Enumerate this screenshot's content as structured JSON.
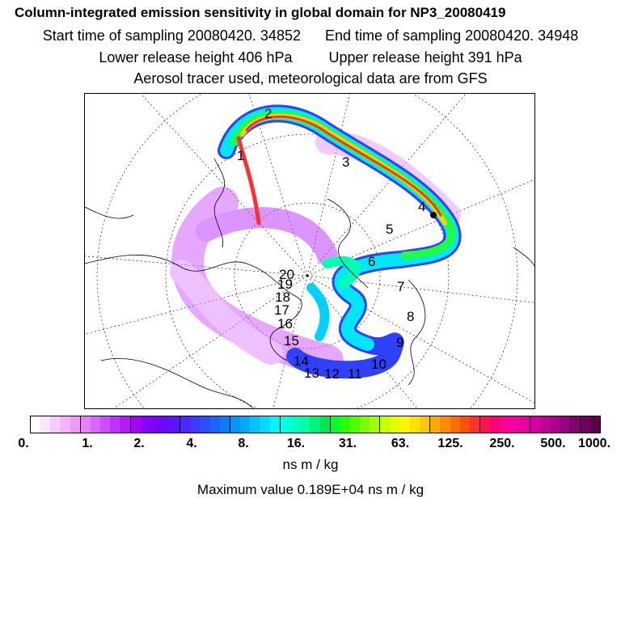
{
  "header": {
    "title": "Column-integrated emission sensitivity in global domain for NP3_20080419",
    "start_time": "Start time of sampling 20080420. 34852",
    "end_time": "End time of sampling 20080420. 34948",
    "lower_height": "Lower release height  406 hPa",
    "upper_height": "Upper release height  391 hPa",
    "tracer_note": "Aerosol tracer used, meteorological data are from GFS"
  },
  "map": {
    "trajectory_points": [
      "1",
      "2",
      "3",
      "4",
      "5",
      "6",
      "7",
      "8",
      "9",
      "10",
      "11",
      "12",
      "13",
      "14",
      "15",
      "16",
      "17",
      "18",
      "19",
      "20"
    ]
  },
  "colorbar": {
    "tick_labels": [
      "0.",
      "1.",
      "2.",
      "4.",
      "8.",
      "16.",
      "31.",
      "63.",
      "125.",
      "250.",
      "500.",
      "1000."
    ],
    "units": "ns m / kg",
    "colors": [
      "#ffffff",
      "#fbe6ff",
      "#f6ccff",
      "#f2b3ff",
      "#ed99ff",
      "#e880ff",
      "#d966ff",
      "#cc4dff",
      "#bf33ff",
      "#b31aff",
      "#a600ff",
      "#8c00ff",
      "#7a00ff",
      "#6a0aff",
      "#5a14ff",
      "#4a28ff",
      "#3a3cff",
      "#2a50ff",
      "#1a64ff",
      "#0a7dff",
      "#0096ff",
      "#00aaff",
      "#00c3ff",
      "#00dcff",
      "#00f5ff",
      "#00ffe6",
      "#00ffc3",
      "#00ffa0",
      "#00f578",
      "#00e650",
      "#00ff28",
      "#28ff00",
      "#50ff00",
      "#78ff00",
      "#a0ff00",
      "#c8ff00",
      "#e6ff00",
      "#fff500",
      "#ffe100",
      "#ffc800",
      "#ffaa00",
      "#ff8c00",
      "#ff6e00",
      "#ff5000",
      "#ff3232",
      "#ff1450",
      "#ff0078",
      "#ff0096",
      "#f500a0",
      "#e600a0",
      "#d200a0",
      "#be0096",
      "#aa008c",
      "#960082",
      "#82006e",
      "#6e005a",
      "#5a0046"
    ]
  },
  "maximum": "Maximum value  0.189E+04 ns m / kg"
}
